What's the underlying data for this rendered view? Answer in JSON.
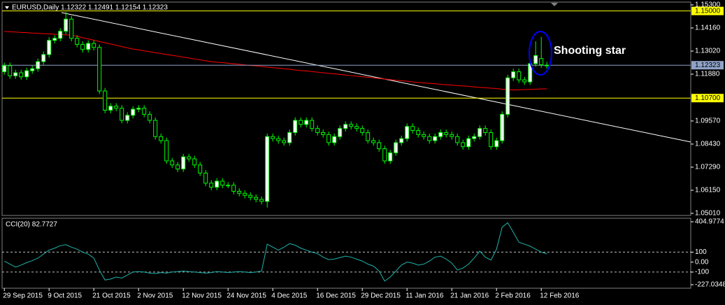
{
  "chart_data": [
    {
      "type": "candlestick",
      "title": "EURUSD,Daily  1.12322 1.12491 1.12154 1.12323",
      "annotation": "Shooting star",
      "categories": [
        "29 Sep 2015",
        null,
        null,
        null,
        null,
        null,
        null,
        null,
        "9 Oct 2015",
        null,
        null,
        null,
        null,
        null,
        null,
        null,
        "21 Oct 2015",
        null,
        null,
        null,
        null,
        null,
        null,
        null,
        "2 Nov 2015",
        null,
        null,
        null,
        null,
        null,
        null,
        null,
        "12 Nov 2015",
        null,
        null,
        null,
        null,
        null,
        null,
        null,
        "24 Nov 2015",
        null,
        null,
        null,
        null,
        null,
        null,
        null,
        "4 Dec 2015",
        null,
        null,
        null,
        null,
        null,
        null,
        null,
        "16 Dec 2015",
        null,
        null,
        null,
        null,
        null,
        null,
        null,
        "29 Dec 2015",
        null,
        null,
        null,
        null,
        null,
        null,
        null,
        "11 Jan 2016",
        null,
        null,
        null,
        null,
        null,
        null,
        null,
        "21 Jan 2016",
        null,
        null,
        null,
        null,
        null,
        null,
        null,
        "2 Feb 2016",
        null,
        null,
        null,
        null,
        null,
        null,
        null,
        "12 Feb 2016",
        null
      ],
      "open": [
        1.12,
        1.123,
        1.118,
        1.1195,
        1.1175,
        1.1205,
        1.1215,
        1.125,
        1.1285,
        1.1355,
        1.1365,
        1.14,
        1.146,
        1.1365,
        1.1335,
        1.131,
        1.134,
        1.132,
        1.1105,
        1.101,
        1.103,
        1.102,
        1.096,
        1.0985,
        1.1015,
        1.102,
        1.099,
        1.096,
        1.088,
        1.086,
        1.076,
        1.074,
        1.072,
        1.078,
        1.077,
        1.074,
        1.07,
        1.065,
        1.063,
        1.066,
        1.064,
        1.064,
        1.061,
        1.06,
        1.059,
        1.058,
        1.057,
        1.056,
        1.088,
        1.087,
        1.086,
        1.085,
        1.09,
        1.096,
        1.094,
        1.096,
        1.092,
        1.09,
        1.089,
        1.085,
        1.088,
        1.092,
        1.094,
        1.093,
        1.092,
        1.09,
        1.086,
        1.085,
        1.082,
        1.076,
        1.08,
        1.085,
        1.087,
        1.093,
        1.091,
        1.089,
        1.088,
        1.086,
        1.088,
        1.09,
        1.089,
        1.088,
        1.085,
        1.083,
        1.087,
        1.088,
        1.092,
        1.09,
        1.083,
        1.086,
        1.099,
        1.117,
        1.12,
        1.116,
        1.115,
        1.124,
        1.1265,
        1.12322
      ],
      "high": [
        1.1245,
        1.1245,
        1.121,
        1.121,
        1.122,
        1.123,
        1.1265,
        1.13,
        1.137,
        1.138,
        1.1415,
        1.1495,
        1.1475,
        1.138,
        1.135,
        1.1355,
        1.1355,
        1.1335,
        1.112,
        1.1045,
        1.1045,
        1.1035,
        1.1,
        1.103,
        1.1035,
        1.1035,
        1.1005,
        1.0975,
        1.0895,
        1.0875,
        1.0775,
        1.0755,
        1.0795,
        1.0795,
        1.0785,
        1.0755,
        1.0715,
        1.0665,
        1.0675,
        1.0675,
        1.0655,
        1.0655,
        1.0625,
        1.0615,
        1.0605,
        1.0595,
        1.0585,
        1.0895,
        1.0895,
        1.0885,
        1.0875,
        1.0915,
        1.0975,
        1.0975,
        1.0975,
        1.0975,
        1.0935,
        1.0915,
        1.0905,
        1.0895,
        1.0935,
        1.0955,
        1.0955,
        1.0945,
        1.0935,
        1.0915,
        1.0875,
        1.0865,
        1.0835,
        1.0815,
        1.0865,
        1.0885,
        1.0945,
        1.0945,
        1.0925,
        1.0905,
        1.0895,
        1.0895,
        1.0915,
        1.0915,
        1.0905,
        1.0895,
        1.0865,
        1.0885,
        1.0895,
        1.0935,
        1.0935,
        1.0915,
        1.0875,
        1.1005,
        1.1185,
        1.1215,
        1.1215,
        1.1175,
        1.1255,
        1.135,
        1.1372,
        1.12491
      ],
      "low": [
        1.1185,
        1.1165,
        1.1165,
        1.116,
        1.116,
        1.119,
        1.12,
        1.1235,
        1.127,
        1.134,
        1.135,
        1.1385,
        1.135,
        1.132,
        1.1295,
        1.1295,
        1.1305,
        1.109,
        1.0995,
        1.0995,
        1.1005,
        1.0945,
        1.0945,
        1.097,
        1.1,
        1.0975,
        1.0945,
        1.0865,
        1.0845,
        1.0745,
        1.0725,
        1.0705,
        1.0705,
        1.0755,
        1.0725,
        1.0685,
        1.0635,
        1.0615,
        1.0615,
        1.0625,
        1.0625,
        1.0595,
        1.0585,
        1.0575,
        1.0565,
        1.0555,
        1.0545,
        1.053,
        1.0855,
        1.0845,
        1.0835,
        1.0835,
        1.0885,
        1.0925,
        1.0925,
        1.0905,
        1.0885,
        1.0875,
        1.0835,
        1.0835,
        1.0865,
        1.0905,
        1.0915,
        1.0905,
        1.0885,
        1.0845,
        1.0835,
        1.0805,
        1.0745,
        1.0745,
        1.0785,
        1.0835,
        1.0855,
        1.0895,
        1.0875,
        1.0865,
        1.0845,
        1.0845,
        1.0865,
        1.0875,
        1.0865,
        1.0835,
        1.0815,
        1.0815,
        1.0855,
        1.0865,
        1.0885,
        1.0815,
        1.0815,
        1.0845,
        1.0975,
        1.1155,
        1.1145,
        1.1135,
        1.1135,
        1.1225,
        1.122,
        1.12154
      ],
      "close": [
        1.123,
        1.118,
        1.1195,
        1.1175,
        1.1205,
        1.1215,
        1.125,
        1.1285,
        1.1355,
        1.1365,
        1.14,
        1.146,
        1.1365,
        1.1335,
        1.131,
        1.134,
        1.132,
        1.1105,
        1.101,
        1.103,
        1.102,
        1.096,
        1.0985,
        1.1015,
        1.102,
        1.099,
        1.096,
        1.088,
        1.086,
        1.076,
        1.074,
        1.072,
        1.078,
        1.077,
        1.074,
        1.07,
        1.065,
        1.063,
        1.066,
        1.064,
        1.064,
        1.061,
        1.06,
        1.059,
        1.058,
        1.057,
        1.056,
        1.088,
        1.087,
        1.086,
        1.085,
        1.09,
        1.096,
        1.094,
        1.096,
        1.092,
        1.09,
        1.089,
        1.085,
        1.088,
        1.092,
        1.094,
        1.093,
        1.092,
        1.09,
        1.086,
        1.085,
        1.082,
        1.076,
        1.08,
        1.085,
        1.087,
        1.093,
        1.091,
        1.089,
        1.088,
        1.086,
        1.088,
        1.09,
        1.089,
        1.088,
        1.085,
        1.083,
        1.087,
        1.088,
        1.092,
        1.09,
        1.083,
        1.086,
        1.099,
        1.117,
        1.12,
        1.116,
        1.115,
        1.124,
        1.128,
        1.1235,
        1.12323
      ],
      "wick_color": "#00ff00",
      "bull_color": "#ffffff",
      "bear_color": "#000000",
      "ma": {
        "color": "#ff0000",
        "values": [
          1.1399,
          1.1397,
          1.1396,
          1.1394,
          1.1393,
          1.1391,
          1.139,
          1.1388,
          1.1387,
          1.1385,
          1.1384,
          1.1382,
          1.1381,
          1.1375,
          1.1368,
          1.1362,
          1.1356,
          1.1349,
          1.1343,
          1.1337,
          1.1331,
          1.1324,
          1.1318,
          1.1312,
          1.1308,
          1.1303,
          1.1299,
          1.1294,
          1.129,
          1.1285,
          1.1281,
          1.1277,
          1.1272,
          1.1268,
          1.1263,
          1.1259,
          1.1254,
          1.125,
          1.1247,
          1.1245,
          1.1242,
          1.1239,
          1.1237,
          1.1234,
          1.1231,
          1.1229,
          1.1226,
          1.1223,
          1.122,
          1.1218,
          1.1215,
          1.1212,
          1.1209,
          1.1206,
          1.1204,
          1.1201,
          1.1198,
          1.1195,
          1.1192,
          1.119,
          1.1187,
          1.1184,
          1.1181,
          1.1178,
          1.1175,
          1.1173,
          1.117,
          1.1167,
          1.1164,
          1.1161,
          1.1158,
          1.1156,
          1.1153,
          1.115,
          1.1147,
          1.1145,
          1.1143,
          1.1141,
          1.1138,
          1.1136,
          1.1134,
          1.1132,
          1.113,
          1.1128,
          1.1125,
          1.1123,
          1.1121,
          1.1119,
          1.1117,
          1.1114,
          1.1112,
          1.111,
          1.1111,
          1.1112,
          1.1113,
          1.1114,
          1.1115,
          1.1116
        ]
      },
      "ylim": [
        1.04906,
        1.15438
      ],
      "yticks": [
        {
          "value": 1.153,
          "label": "1.15300"
        },
        {
          "value": 1.1416,
          "label": "1.14160"
        },
        {
          "value": 1.1302,
          "label": "1.13020"
        },
        {
          "value": 1.1188,
          "label": "1.11880"
        },
        {
          "value": 1.0957,
          "label": "1.09570"
        },
        {
          "value": 1.0843,
          "label": "1.08430"
        },
        {
          "value": 1.0729,
          "label": "1.07290"
        },
        {
          "value": 1.0615,
          "label": "1.06150"
        },
        {
          "value": 1.0501,
          "label": "1.05010"
        }
      ],
      "levels": [
        {
          "value": 1.15,
          "label": "1.15000",
          "color": "#ffff00"
        },
        {
          "value": 1.12323,
          "label": "1.12323",
          "color": "#8fa3c8"
        },
        {
          "value": 1.107,
          "label": "1.10700",
          "color": "#ffff00"
        }
      ]
    },
    {
      "type": "line",
      "title": "CCI(20) 82.7727",
      "color": "#20b2aa",
      "values": [
        10,
        -20,
        -50,
        -30,
        -5,
        15,
        40,
        80,
        120,
        140,
        165,
        175,
        150,
        130,
        100,
        80,
        40,
        -80,
        -180,
        -170,
        -150,
        -160,
        -130,
        -100,
        -95,
        -100,
        -110,
        -115,
        -105,
        -110,
        -100,
        -95,
        -90,
        -95,
        -100,
        -105,
        -110,
        -105,
        -95,
        -100,
        -105,
        -100,
        -95,
        -100,
        -105,
        -100,
        -90,
        180,
        150,
        120,
        150,
        185,
        170,
        140,
        120,
        100,
        85,
        50,
        25,
        30,
        45,
        60,
        50,
        30,
        10,
        -20,
        -40,
        -90,
        -190,
        -150,
        -90,
        -30,
        0,
        -10,
        -30,
        -20,
        10,
        50,
        60,
        30,
        -10,
        -80,
        -60,
        -20,
        40,
        110,
        50,
        20,
        130,
        350,
        395,
        300,
        200,
        180,
        160,
        130,
        100,
        82.7727
      ],
      "ylim": [
        -227.0348,
        404.9774
      ],
      "yticks": [
        404.9774,
        100,
        {
          "value": 0,
          "label": "0.00"
        },
        -100,
        -227.0348
      ],
      "levels": [
        100,
        -100
      ]
    }
  ]
}
